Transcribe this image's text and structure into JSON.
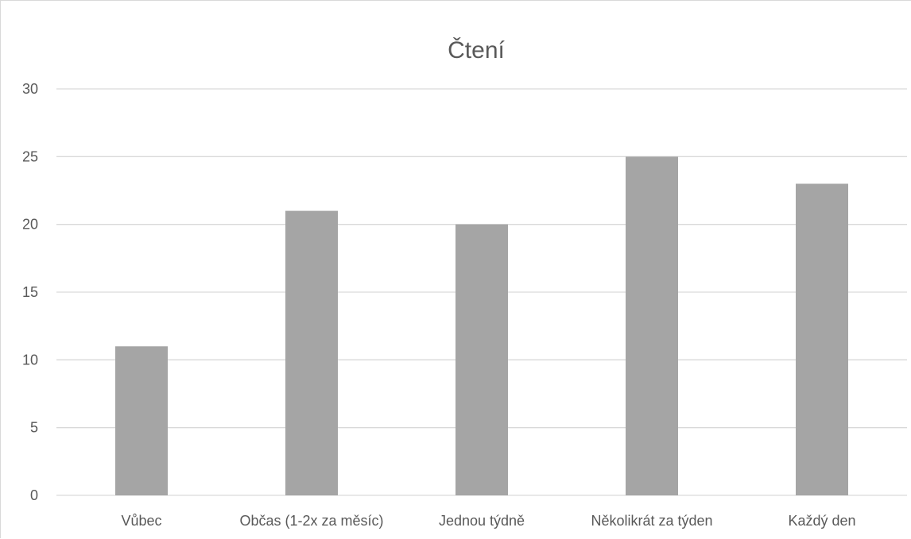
{
  "chart_data": {
    "type": "bar",
    "title": "Čtení",
    "categories": [
      "Vůbec",
      "Občas (1-2x za měsíc)",
      "Jednou týdně",
      "Několikrát za týden",
      "Každý den"
    ],
    "values": [
      11,
      21,
      20,
      25,
      23
    ],
    "ylim": [
      0,
      30
    ],
    "yticks": [
      0,
      5,
      10,
      15,
      20,
      25,
      30
    ],
    "grid": true,
    "legend": "none",
    "bar_color": "#a5a5a5",
    "gridline_color": "#d9d9d9",
    "text_color": "#595959"
  }
}
